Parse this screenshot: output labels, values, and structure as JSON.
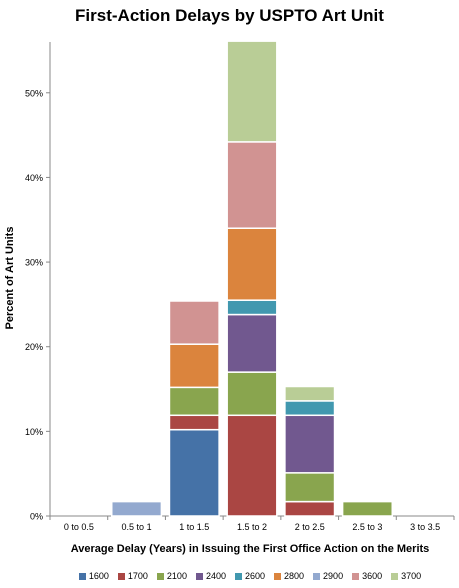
{
  "chart_data": {
    "type": "bar",
    "stacked": true,
    "title": "First-Action Delays by USPTO Art Unit",
    "xlabel": "Average Delay (Years) in Issuing the First Office Action on the Merits",
    "ylabel": "Percent of Art Units",
    "ylim": [
      0,
      56
    ],
    "yticks": [
      0,
      10,
      20,
      30,
      40,
      50
    ],
    "ytick_format": "percent",
    "grid": false,
    "legend": "bottom",
    "categories": [
      "0 to 0.5",
      "0.5 to 1",
      "1 to 1.5",
      "1.5 to 2",
      "2 to 2.5",
      "2.5 to 3",
      "3 to 3.5"
    ],
    "series": [
      {
        "name": "1600",
        "color": "#4572a7",
        "values": [
          0,
          0,
          10.2,
          0,
          0,
          0,
          0
        ]
      },
      {
        "name": "1700",
        "color": "#aa4643",
        "values": [
          0,
          0,
          1.7,
          11.9,
          1.7,
          0,
          0
        ]
      },
      {
        "name": "2100",
        "color": "#89a54e",
        "values": [
          0,
          0,
          3.3,
          5.1,
          3.4,
          1.7,
          0
        ]
      },
      {
        "name": "2400",
        "color": "#71588f",
        "values": [
          0,
          0,
          0,
          6.8,
          6.8,
          0,
          0
        ]
      },
      {
        "name": "2600",
        "color": "#4198af",
        "values": [
          0,
          0,
          0,
          1.7,
          1.7,
          0,
          0
        ]
      },
      {
        "name": "2800",
        "color": "#db843d",
        "values": [
          0,
          0,
          5.1,
          8.5,
          0,
          0,
          0
        ]
      },
      {
        "name": "2900",
        "color": "#93a9cf",
        "values": [
          0,
          1.7,
          0,
          0,
          0,
          0,
          0
        ]
      },
      {
        "name": "3600",
        "color": "#d19392",
        "values": [
          0,
          0,
          5.1,
          10.2,
          0,
          0,
          0
        ]
      },
      {
        "name": "3700",
        "color": "#b9cd96",
        "values": [
          0,
          0,
          0,
          11.9,
          1.7,
          0,
          0
        ]
      }
    ]
  }
}
